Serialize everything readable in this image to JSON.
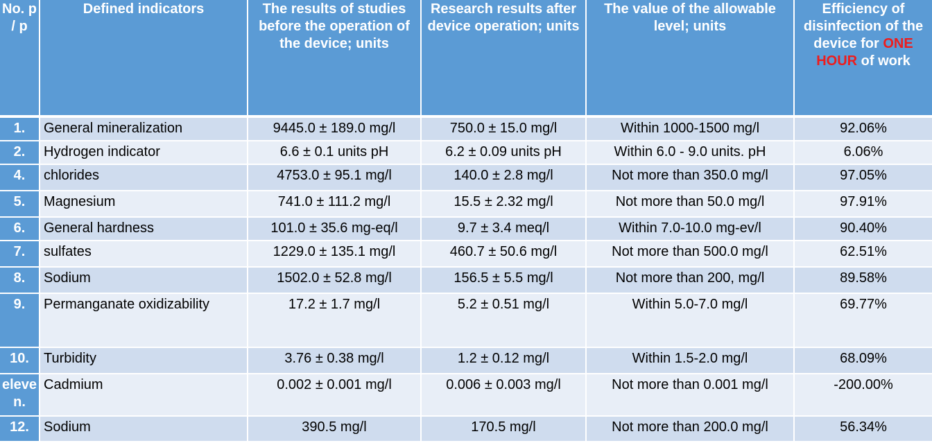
{
  "headers": {
    "num": "No. p / p",
    "indicator": "Defined indicators",
    "before": "The results of studies before the operation of the device; units",
    "after": "Research results after device operation; units",
    "allowable": "The value of the allowable level; units",
    "efficiency_pre": "Efficiency of disinfection of the device for ",
    "efficiency_hl": "ONE HOUR",
    "efficiency_post": " of work"
  },
  "colors": {
    "header_bg": "#5b9bd5",
    "row_odd": "#cfdcee",
    "row_even": "#e8eef7",
    "highlight": "#ee1c1c"
  },
  "rows": [
    {
      "num": "1.",
      "indicator": "General mineralization",
      "before": "9445.0 ± 189.0 mg/l",
      "after": "750.0 ± 15.0 mg/l",
      "allowable": "Within 1000-1500 mg/l",
      "efficiency": "92.06%"
    },
    {
      "num": "2.",
      "indicator": "Hydrogen indicator",
      "before": "6.6 ± 0.1 units pH",
      "after": "6.2 ± 0.09 units pH",
      "allowable": "Within 6.0 - 9.0 units. pH",
      "efficiency": "6.06%"
    },
    {
      "num": "4.",
      "indicator": "chlorides",
      "before": "4753.0 ± 95.1 mg/l",
      "after": "140.0 ± 2.8 mg/l",
      "allowable": "Not more than 350.0 mg/l",
      "efficiency": "97.05%"
    },
    {
      "num": "5.",
      "indicator": "Magnesium",
      "before": "741.0 ± 111.2 mg/l",
      "after": "15.5 ± 2.32 mg/l",
      "allowable": "Not more than 50.0 mg/l",
      "efficiency": "97.91%"
    },
    {
      "num": "6.",
      "indicator": "General hardness",
      "before": "101.0 ± 35.6 mg-eq/l",
      "after": "9.7 ± 3.4 meq/l",
      "allowable": "Within 7.0-10.0 mg-ev/l",
      "efficiency": "90.40%"
    },
    {
      "num": "7.",
      "indicator": "sulfates",
      "before": "1229.0 ± 135.1 mg/l",
      "after": "460.7 ± 50.6 mg/l",
      "allowable": "Not more than 500.0 mg/l",
      "efficiency": "62.51%"
    },
    {
      "num": "8.",
      "indicator": "Sodium",
      "before": "1502.0 ± 52.8 mg/l",
      "after": "156.5 ± 5.5 mg/l",
      "allowable": "Not more than 200, mg/l",
      "efficiency": "89.58%"
    },
    {
      "num": "9.",
      "indicator": "Permanganate oxidizability",
      "before": "17.2 ± 1.7 mg/l",
      "after": "5.2 ± 0.51 mg/l",
      "allowable": "Within 5.0-7.0 mg/l",
      "efficiency": "69.77%"
    },
    {
      "num": "10.",
      "indicator": "Turbidity",
      "before": "3.76 ± 0.38 mg/l",
      "after": "1.2 ± 0.12 mg/l",
      "allowable": "Within 1.5-2.0 mg/l",
      "efficiency": "68.09%"
    },
    {
      "num": "eleven.",
      "indicator": "Cadmium",
      "before": "0.002 ± 0.001 mg/l",
      "after": "0.006 ± 0.003 mg/l",
      "allowable": "Not more than 0.001 mg/l",
      "efficiency": "-200.00%"
    },
    {
      "num": "12.",
      "indicator": "Sodium",
      "before": "390.5 mg/l",
      "after": "170.5 mg/l",
      "allowable": "Not more than 200.0 mg/l",
      "efficiency": "56.34%"
    }
  ]
}
